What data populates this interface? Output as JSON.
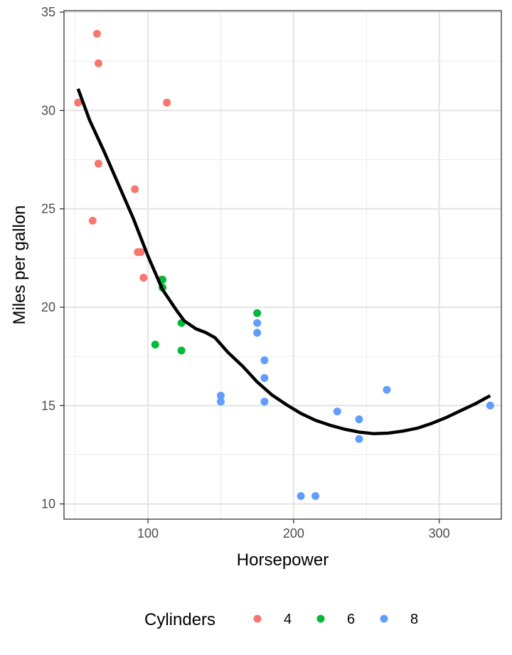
{
  "chart_data": {
    "type": "scatter",
    "xlabel": "Horsepower",
    "ylabel": "Miles per gallon",
    "xlim": [
      42.35,
      342.65
    ],
    "ylim": [
      9.225,
      35.075
    ],
    "x_ticks": [
      100,
      200,
      300
    ],
    "x_tick_labels": [
      "100",
      "200",
      "300"
    ],
    "y_ticks": [
      10,
      15,
      20,
      25,
      30,
      35
    ],
    "y_tick_labels": [
      "10",
      "15",
      "20",
      "25",
      "30",
      "35"
    ],
    "grid": true,
    "legend": {
      "title": "Cylinders",
      "position": "bottom",
      "entries": [
        {
          "label": "4",
          "color": "#F8766D"
        },
        {
          "label": "6",
          "color": "#00BA38"
        },
        {
          "label": "8",
          "color": "#619CFF"
        }
      ]
    },
    "series": [
      {
        "name": "4",
        "color": "#F8766D",
        "points": [
          [
            52,
            30.4
          ],
          [
            65,
            33.9
          ],
          [
            66,
            32.4
          ],
          [
            66,
            27.3
          ],
          [
            62,
            24.4
          ],
          [
            91,
            26.0
          ],
          [
            93,
            22.8
          ],
          [
            95,
            22.8
          ],
          [
            97,
            21.5
          ],
          [
            109,
            21.4
          ],
          [
            113,
            30.4
          ]
        ]
      },
      {
        "name": "6",
        "color": "#00BA38",
        "points": [
          [
            105,
            18.1
          ],
          [
            110,
            21.0
          ],
          [
            110,
            21.4
          ],
          [
            123,
            19.2
          ],
          [
            123,
            17.8
          ],
          [
            175,
            19.7
          ]
        ]
      },
      {
        "name": "8",
        "color": "#619CFF",
        "points": [
          [
            150,
            15.5
          ],
          [
            150,
            15.2
          ],
          [
            175,
            19.2
          ],
          [
            175,
            18.7
          ],
          [
            180,
            17.3
          ],
          [
            180,
            16.4
          ],
          [
            180,
            15.2
          ],
          [
            205,
            10.4
          ],
          [
            215,
            10.4
          ],
          [
            230,
            14.7
          ],
          [
            245,
            14.3
          ],
          [
            245,
            13.3
          ],
          [
            264,
            15.8
          ],
          [
            335,
            15.0
          ]
        ]
      }
    ],
    "smooth_line": {
      "color": "#000000",
      "points": [
        [
          52,
          31.1
        ],
        [
          60,
          29.5
        ],
        [
          70,
          27.9
        ],
        [
          80,
          26.2
        ],
        [
          90,
          24.5
        ],
        [
          100,
          22.6
        ],
        [
          110,
          20.9
        ],
        [
          120,
          19.8
        ],
        [
          125,
          19.3
        ],
        [
          133,
          18.9
        ],
        [
          140,
          18.7
        ],
        [
          146,
          18.45
        ],
        [
          155,
          17.7
        ],
        [
          165,
          17.0
        ],
        [
          175,
          16.2
        ],
        [
          185,
          15.55
        ],
        [
          195,
          15.05
        ],
        [
          205,
          14.6
        ],
        [
          215,
          14.25
        ],
        [
          225,
          14.0
        ],
        [
          235,
          13.8
        ],
        [
          245,
          13.65
        ],
        [
          255,
          13.57
        ],
        [
          265,
          13.6
        ],
        [
          275,
          13.7
        ],
        [
          285,
          13.85
        ],
        [
          295,
          14.1
        ],
        [
          305,
          14.4
        ],
        [
          315,
          14.75
        ],
        [
          325,
          15.1
        ],
        [
          335,
          15.5
        ]
      ]
    }
  }
}
